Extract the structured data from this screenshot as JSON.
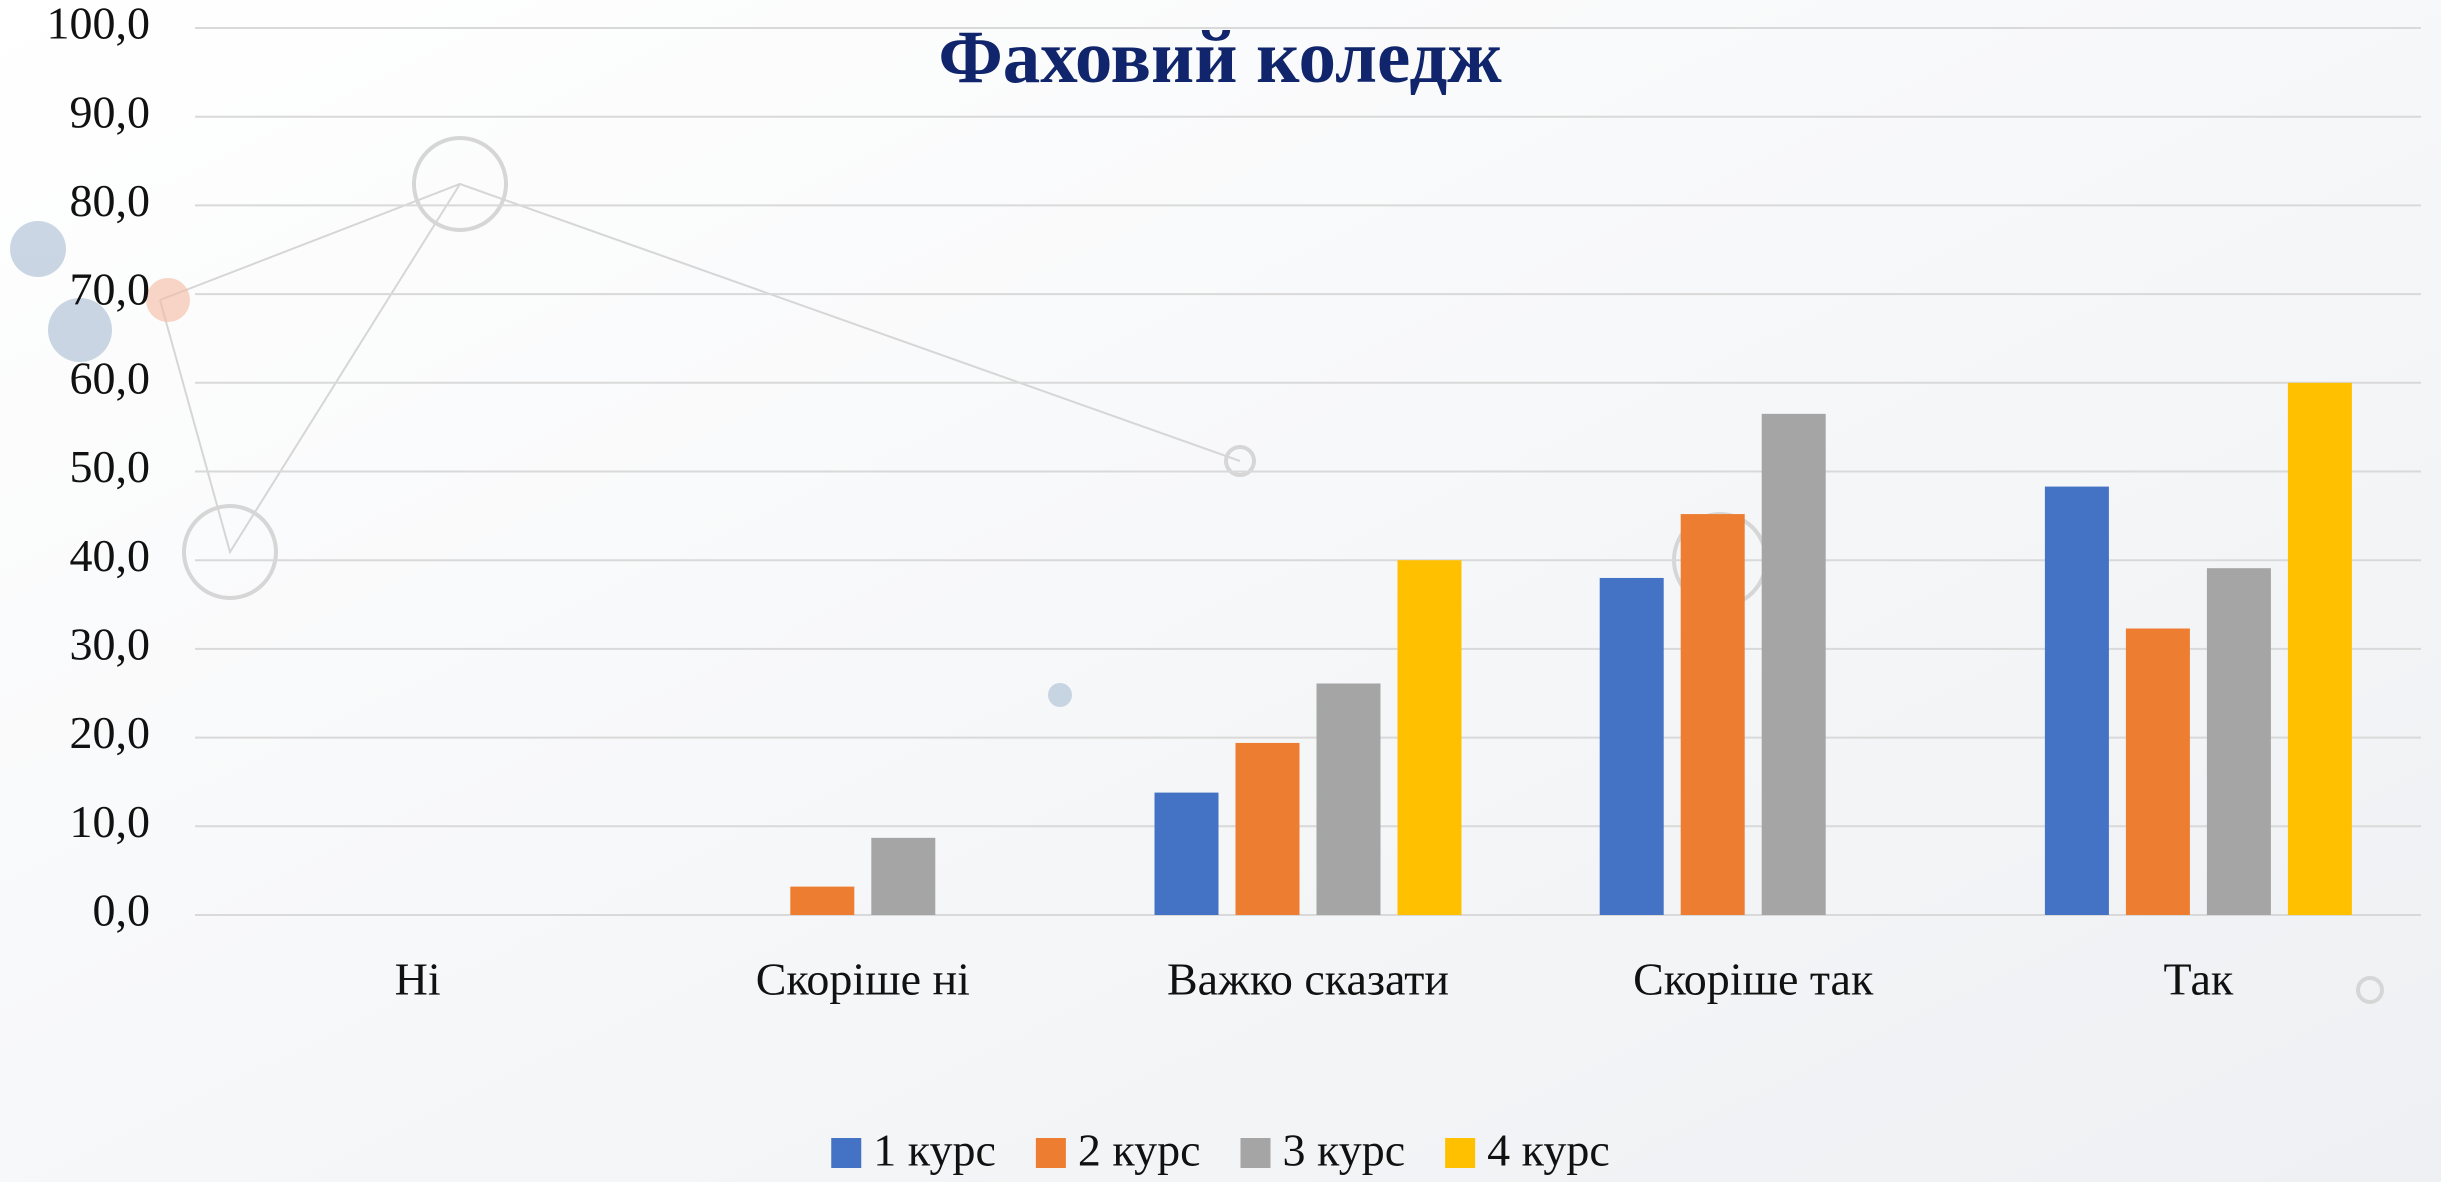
{
  "chart_data": {
    "type": "bar",
    "title": "Фаховий коледж",
    "categories": [
      "Ні",
      "Скоріше ні",
      "Важко сказати",
      "Скоріше так",
      "Так"
    ],
    "series": [
      {
        "name": "1 курс",
        "color": "#4472c4",
        "values": [
          0,
          0,
          13.8,
          38.0,
          48.3
        ]
      },
      {
        "name": "2 курс",
        "color": "#ed7d31",
        "values": [
          0,
          3.2,
          19.4,
          45.2,
          32.3
        ]
      },
      {
        "name": "3 курс",
        "color": "#a5a5a5",
        "values": [
          0,
          8.7,
          26.1,
          56.5,
          39.1
        ]
      },
      {
        "name": "4 курс",
        "color": "#ffc000",
        "values": [
          0,
          0,
          40.0,
          0,
          60.0
        ]
      }
    ],
    "ylim": [
      0,
      100
    ],
    "yticks": [
      {
        "value": 0,
        "label": "0,0"
      },
      {
        "value": 10,
        "label": "10,0"
      },
      {
        "value": 20,
        "label": "20,0"
      },
      {
        "value": 30,
        "label": "30,0"
      },
      {
        "value": 40,
        "label": "40,0"
      },
      {
        "value": 50,
        "label": "50,0"
      },
      {
        "value": 60,
        "label": "60,0"
      },
      {
        "value": 70,
        "label": "70,0"
      },
      {
        "value": 80,
        "label": "80,0"
      },
      {
        "value": 90,
        "label": "90,0"
      },
      {
        "value": 100,
        "label": "100,0"
      }
    ],
    "grid": true,
    "legend": "bottom"
  }
}
